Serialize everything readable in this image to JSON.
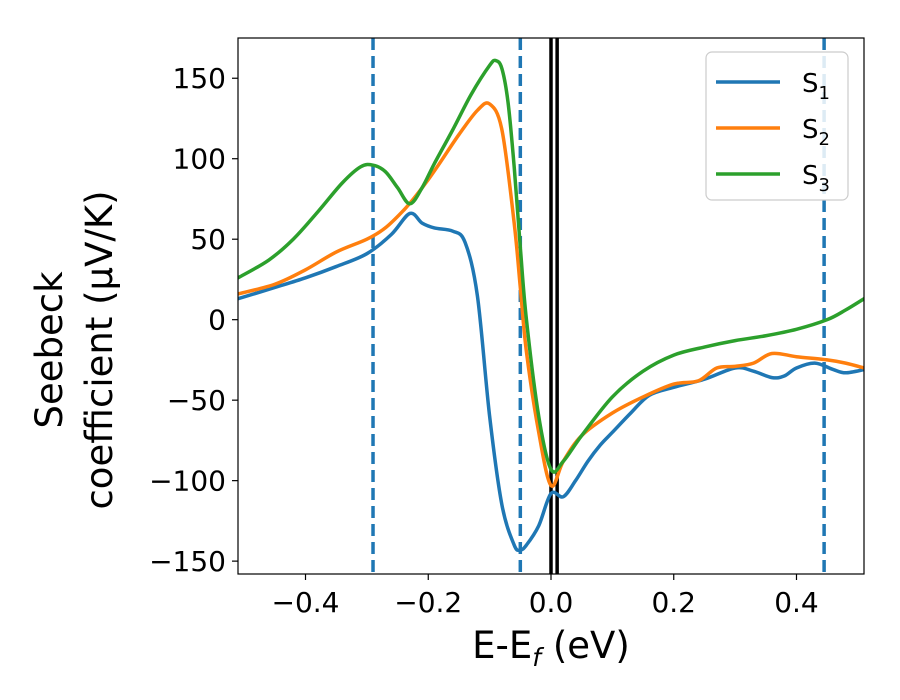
{
  "chart_data": {
    "type": "line",
    "xlabel": {
      "main": "E-E",
      "sub": "f",
      "unit": " (eV)"
    },
    "ylabel": {
      "line1": "Seebeck",
      "line2": "coefficient  (μV/K)"
    },
    "xlim": [
      -0.51,
      0.51
    ],
    "ylim": [
      -158,
      175
    ],
    "xticks": [
      -0.4,
      -0.2,
      0.0,
      0.2,
      0.4
    ],
    "xtick_labels": [
      "−0.4",
      "−0.2",
      "0.0",
      "0.2",
      "0.4"
    ],
    "yticks": [
      -150,
      -100,
      -50,
      0,
      50,
      100,
      150
    ],
    "ytick_labels": [
      "−150",
      "−100",
      "−50",
      "0",
      "50",
      "100",
      "150"
    ],
    "grid": false,
    "legend_position": "top-right",
    "series": [
      {
        "name": "S",
        "subscript": "1",
        "color": "#1f77b4",
        "x": [
          -0.51,
          -0.45,
          -0.4,
          -0.35,
          -0.3,
          -0.26,
          -0.23,
          -0.21,
          -0.19,
          -0.16,
          -0.14,
          -0.12,
          -0.1,
          -0.08,
          -0.06,
          -0.05,
          -0.04,
          -0.02,
          0.0,
          0.02,
          0.04,
          0.06,
          0.08,
          0.1,
          0.13,
          0.16,
          0.2,
          0.25,
          0.3,
          0.33,
          0.36,
          0.38,
          0.4,
          0.43,
          0.46,
          0.48,
          0.51
        ],
        "y": [
          13,
          20,
          26,
          33,
          41,
          53,
          66,
          60,
          57,
          55,
          48,
          15,
          -60,
          -115,
          -140,
          -143,
          -140,
          -128,
          -108,
          -110,
          -100,
          -88,
          -78,
          -70,
          -58,
          -47,
          -42,
          -37,
          -30,
          -32,
          -36,
          -35,
          -30,
          -27,
          -31,
          -33,
          -31
        ]
      },
      {
        "name": "S",
        "subscript": "2",
        "color": "#ff7f0e",
        "x": [
          -0.51,
          -0.45,
          -0.4,
          -0.35,
          -0.3,
          -0.27,
          -0.24,
          -0.22,
          -0.2,
          -0.18,
          -0.15,
          -0.12,
          -0.1,
          -0.08,
          -0.06,
          -0.05,
          -0.04,
          -0.02,
          0.0,
          0.02,
          0.05,
          0.1,
          0.15,
          0.2,
          0.24,
          0.27,
          0.3,
          0.33,
          0.36,
          0.4,
          0.45,
          0.48,
          0.51
        ],
        "y": [
          16,
          22,
          31,
          42,
          50,
          57,
          68,
          77,
          87,
          98,
          115,
          130,
          134,
          118,
          60,
          20,
          -20,
          -70,
          -103,
          -88,
          -72,
          -58,
          -48,
          -40,
          -38,
          -30,
          -29,
          -27,
          -21,
          -23,
          -25,
          -27,
          -30
        ]
      },
      {
        "name": "S",
        "subscript": "3",
        "color": "#2ca02c",
        "x": [
          -0.51,
          -0.46,
          -0.42,
          -0.38,
          -0.34,
          -0.31,
          -0.29,
          -0.27,
          -0.25,
          -0.23,
          -0.21,
          -0.19,
          -0.16,
          -0.13,
          -0.1,
          -0.09,
          -0.08,
          -0.07,
          -0.06,
          -0.05,
          -0.04,
          -0.02,
          0.0,
          0.02,
          0.05,
          0.1,
          0.15,
          0.2,
          0.25,
          0.3,
          0.35,
          0.4,
          0.45,
          0.48,
          0.51
        ],
        "y": [
          26,
          37,
          50,
          67,
          85,
          95,
          96,
          92,
          82,
          72,
          82,
          97,
          118,
          140,
          158,
          161,
          156,
          135,
          95,
          45,
          0,
          -60,
          -93,
          -88,
          -72,
          -48,
          -32,
          -22,
          -17,
          -13,
          -10,
          -6,
          0,
          6,
          13
        ]
      }
    ],
    "vertical_lines": [
      {
        "x": -0.29,
        "style": "dashed",
        "color": "#1f77b4"
      },
      {
        "x": -0.05,
        "style": "dashed",
        "color": "#1f77b4"
      },
      {
        "x": 0.445,
        "style": "dashed",
        "color": "#1f77b4"
      },
      {
        "x": 0.0,
        "style": "solid",
        "color": "#000000"
      },
      {
        "x": 0.01,
        "style": "solid",
        "color": "#000000"
      }
    ]
  }
}
